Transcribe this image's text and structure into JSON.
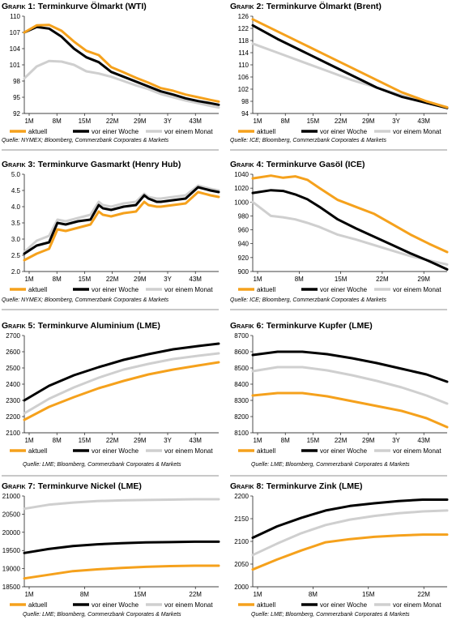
{
  "chart_data": [
    {
      "type": "line",
      "title_prefix": "Grafik 1:",
      "title": "Terminkurve Ölmarkt (WTI)",
      "ylim": [
        92,
        110
      ],
      "yticks": [
        "110",
        "107",
        "104",
        "101",
        "98",
        "95",
        "92"
      ],
      "xticks": [
        "1M",
        "8M",
        "15M",
        "22M",
        "29M",
        "3Y",
        "43M"
      ],
      "x": [
        1,
        4,
        7,
        10,
        13,
        16,
        19,
        22,
        25,
        28,
        31,
        34,
        37,
        40,
        43,
        46,
        48
      ],
      "series": [
        {
          "name": "aktuell",
          "color": "#f5a11c",
          "values": [
            107,
            108.3,
            108.4,
            107.3,
            105.3,
            103.6,
            102.8,
            100.6,
            99.6,
            98.6,
            97.7,
            96.7,
            96.2,
            95.5,
            95,
            94.5,
            94.2
          ]
        },
        {
          "name": "vor einer Woche",
          "color": "#000000",
          "values": [
            107,
            108,
            107.7,
            106.2,
            104,
            102.4,
            101.5,
            99.7,
            98.8,
            97.9,
            97,
            96.1,
            95.5,
            94.8,
            94.3,
            93.9,
            93.6
          ]
        },
        {
          "name": "vor einem Monat",
          "color": "#cfcfcf",
          "values": [
            98.5,
            100.7,
            101.7,
            101.6,
            101,
            99.8,
            99.4,
            98.8,
            98,
            97.2,
            96.5,
            95.6,
            95,
            94.4,
            93.9,
            93.4,
            93.1
          ]
        }
      ],
      "legend": [
        "aktuell",
        "vor einer Woche",
        "vor einem Monat"
      ],
      "source": "Quelle: NYMEX; Bloomberg, Commerzbank Corporates & Markets"
    },
    {
      "type": "line",
      "title_prefix": "Grafik 2:",
      "title": "Terminkurve Ölmarkt (Brent)",
      "ylim": [
        94,
        126
      ],
      "yticks": [
        "126",
        "122",
        "118",
        "114",
        "110",
        "106",
        "102",
        "98",
        "94"
      ],
      "xticks": [
        "1M",
        "8M",
        "15M",
        "22M",
        "29M",
        "3Y",
        "43M"
      ],
      "x": [
        1,
        7,
        13,
        19,
        25,
        31,
        37,
        43,
        48
      ],
      "series": [
        {
          "name": "aktuell",
          "color": "#f5a11c",
          "values": [
            125,
            121,
            117,
            113,
            109,
            105,
            101,
            98,
            96
          ]
        },
        {
          "name": "vor einer Woche",
          "color": "#000000",
          "values": [
            123,
            118.5,
            114.5,
            110.5,
            106.5,
            102.5,
            99.5,
            97.5,
            95.8
          ]
        },
        {
          "name": "vor einem Monat",
          "color": "#cfcfcf",
          "values": [
            117,
            114,
            111,
            108,
            105,
            102.5,
            100,
            97.5,
            96
          ]
        }
      ],
      "legend": [
        "aktuell",
        "vor einer Woche",
        "vor einem Monat"
      ],
      "source": "Quelle: ICE; Bloomberg, Commerzbank Corporates & Markets"
    },
    {
      "type": "line",
      "title_prefix": "Grafik 3:",
      "title": "Terminkurve Gasmarkt (Henry Hub)",
      "ylim": [
        2,
        5
      ],
      "yticks": [
        "5.0",
        "4.5",
        "4.0",
        "3.5",
        "3.0",
        "2.5",
        "2.0"
      ],
      "xticks": [
        "1M",
        "8M",
        "15M",
        "22M",
        "29M",
        "3Y",
        "43M"
      ],
      "x": [
        1,
        4,
        7,
        9,
        11,
        14,
        17,
        19,
        20,
        22,
        25,
        28,
        30,
        31,
        33,
        34,
        37,
        40,
        43,
        46,
        48
      ],
      "series": [
        {
          "name": "aktuell",
          "color": "#f5a11c",
          "values": [
            2.35,
            2.55,
            2.7,
            3.3,
            3.25,
            3.35,
            3.45,
            3.85,
            3.75,
            3.7,
            3.8,
            3.85,
            4.15,
            4.05,
            4.0,
            4.0,
            4.05,
            4.1,
            4.45,
            4.35,
            4.3
          ]
        },
        {
          "name": "vor einer Woche",
          "color": "#000000",
          "values": [
            2.55,
            2.8,
            2.9,
            3.5,
            3.45,
            3.55,
            3.6,
            4.05,
            3.95,
            3.9,
            4.0,
            4.05,
            4.35,
            4.25,
            4.15,
            4.15,
            4.2,
            4.25,
            4.6,
            4.5,
            4.45
          ]
        },
        {
          "name": "vor einem Monat",
          "color": "#cfcfcf",
          "values": [
            2.6,
            2.95,
            3.1,
            3.6,
            3.55,
            3.65,
            3.75,
            4.15,
            4.05,
            4.0,
            4.1,
            4.15,
            4.4,
            4.3,
            4.25,
            4.25,
            4.3,
            4.35,
            4.65,
            4.55,
            4.5
          ]
        }
      ],
      "legend": [
        "aktuell",
        "vor einer Woche",
        "vor einem Monat"
      ],
      "source": "Quelle: NYMEX; Bloomberg, Commerzbank Corporates & Markets"
    },
    {
      "type": "line",
      "title_prefix": "Grafik 4:",
      "title": "Terminkurve Gasöl (ICE)",
      "ylim": [
        900,
        1040
      ],
      "yticks": [
        "1040",
        "1020",
        "1000",
        "980",
        "960",
        "940",
        "920",
        "900"
      ],
      "xticks": [
        "1M",
        "8M",
        "15M",
        "22M",
        "29M"
      ],
      "x": [
        1,
        4,
        6,
        8,
        10,
        12,
        15,
        18,
        21,
        24,
        27,
        30,
        33
      ],
      "series": [
        {
          "name": "aktuell",
          "color": "#f5a11c",
          "values": [
            1034,
            1038,
            1035,
            1037,
            1032,
            1020,
            1003,
            993,
            983,
            968,
            953,
            940,
            928
          ]
        },
        {
          "name": "vor einer Woche",
          "color": "#000000",
          "values": [
            1013,
            1017,
            1016,
            1011,
            1004,
            993,
            975,
            962,
            950,
            938,
            926,
            915,
            903
          ]
        },
        {
          "name": "vor einem Monat",
          "color": "#cfcfcf",
          "values": [
            1000,
            980,
            978,
            975,
            970,
            964,
            953,
            946,
            938,
            930,
            922,
            916,
            910
          ]
        }
      ],
      "legend": [
        "aktuell",
        "vor einer Woche",
        "vor einem Monat"
      ],
      "source": "Quelle: ICE; Bloomberg, Commerzbank Corporates & Markets"
    },
    {
      "type": "line",
      "title_prefix": "Grafik 5:",
      "title": "Terminkurve Aluminium (LME)",
      "ylim": [
        2100,
        2700
      ],
      "yticks": [
        "2700",
        "2600",
        "2500",
        "2400",
        "2300",
        "2200",
        "2100"
      ],
      "xticks": [
        "1M",
        "8M",
        "15M",
        "22M",
        "29M",
        "3Y",
        "43M"
      ],
      "x": [
        1,
        7,
        13,
        19,
        25,
        31,
        37,
        43,
        48
      ],
      "series": [
        {
          "name": "aktuell",
          "color": "#f5a11c",
          "values": [
            2180,
            2260,
            2320,
            2375,
            2420,
            2460,
            2490,
            2515,
            2535
          ]
        },
        {
          "name": "vor einer Woche",
          "color": "#000000",
          "values": [
            2300,
            2390,
            2455,
            2505,
            2550,
            2585,
            2615,
            2635,
            2650
          ]
        },
        {
          "name": "vor einem Monat",
          "color": "#cfcfcf",
          "values": [
            2220,
            2310,
            2380,
            2440,
            2490,
            2525,
            2555,
            2575,
            2590
          ]
        }
      ],
      "legend": [
        "aktuell",
        "vor einer Woche",
        "vor einem Monat"
      ],
      "source": "Quelle: LME; Bloomberg, Commerzbank Corporates & Markets"
    },
    {
      "type": "line",
      "title_prefix": "Grafik 6:",
      "title": "Terminkurve Kupfer (LME)",
      "ylim": [
        8100,
        8700
      ],
      "yticks": [
        "8700",
        "8600",
        "8500",
        "8400",
        "8300",
        "8200",
        "8100"
      ],
      "xticks": [
        "1M",
        "8M",
        "15M",
        "22M",
        "29M",
        "3Y",
        "43M"
      ],
      "x": [
        1,
        7,
        13,
        19,
        25,
        31,
        37,
        43,
        48
      ],
      "series": [
        {
          "name": "aktuell",
          "color": "#f5a11c",
          "values": [
            8330,
            8345,
            8345,
            8325,
            8295,
            8265,
            8235,
            8190,
            8135
          ]
        },
        {
          "name": "vor einer Woche",
          "color": "#000000",
          "values": [
            8580,
            8600,
            8600,
            8585,
            8560,
            8530,
            8495,
            8460,
            8415
          ]
        },
        {
          "name": "vor einem Monat",
          "color": "#cfcfcf",
          "values": [
            8480,
            8505,
            8505,
            8485,
            8455,
            8420,
            8380,
            8330,
            8280
          ]
        }
      ],
      "legend": [
        "aktuell",
        "vor einer Woche",
        "vor einem Monat"
      ],
      "source": "Quelle: LME; Bloomberg, Commerzbank Corporates & Markets"
    },
    {
      "type": "line",
      "title_prefix": "Grafik 7:",
      "title": "Terminkurve Nickel (LME)",
      "ylim": [
        18500,
        21000
      ],
      "yticks": [
        "21000",
        "20500",
        "20000",
        "19500",
        "19000",
        "18500"
      ],
      "xticks": [
        "1M",
        "8M",
        "15M",
        "22M"
      ],
      "x": [
        1,
        4,
        7,
        10,
        13,
        16,
        19,
        22,
        25
      ],
      "series": [
        {
          "name": "aktuell",
          "color": "#f5a11c",
          "values": [
            18730,
            18830,
            18930,
            18980,
            19020,
            19050,
            19070,
            19080,
            19080
          ]
        },
        {
          "name": "vor einer Woche",
          "color": "#000000",
          "values": [
            19430,
            19540,
            19620,
            19670,
            19700,
            19720,
            19730,
            19740,
            19740
          ]
        },
        {
          "name": "vor einem Monat",
          "color": "#cfcfcf",
          "values": [
            20650,
            20760,
            20820,
            20860,
            20880,
            20890,
            20900,
            20910,
            20910
          ]
        }
      ],
      "legend": [
        "aktuell",
        "vor einer Woche",
        "vor einem Monat"
      ],
      "source": "Quelle: LME; Bloomberg, Commerzbank Corporates & Markets"
    },
    {
      "type": "line",
      "title_prefix": "Grafik 8:",
      "title": "Terminkurve Zink (LME)",
      "ylim": [
        2000,
        2200
      ],
      "yticks": [
        "2200",
        "2150",
        "2100",
        "2050",
        "2000"
      ],
      "xticks": [
        "1M",
        "8M",
        "15M",
        "22M"
      ],
      "x": [
        1,
        4,
        7,
        10,
        13,
        16,
        19,
        22,
        25
      ],
      "series": [
        {
          "name": "aktuell",
          "color": "#f5a11c",
          "values": [
            2038,
            2060,
            2080,
            2098,
            2105,
            2110,
            2113,
            2115,
            2115
          ]
        },
        {
          "name": "vor einer Woche",
          "color": "#000000",
          "values": [
            2108,
            2133,
            2152,
            2168,
            2178,
            2184,
            2189,
            2192,
            2192
          ]
        },
        {
          "name": "vor einem Monat",
          "color": "#cfcfcf",
          "values": [
            2070,
            2095,
            2118,
            2136,
            2148,
            2156,
            2162,
            2166,
            2168
          ]
        }
      ],
      "legend": [
        "aktuell",
        "vor einer Woche",
        "vor einem Monat"
      ],
      "source": "Quelle: LME; Bloomberg, Commerzbank Corporates & Markets"
    }
  ]
}
